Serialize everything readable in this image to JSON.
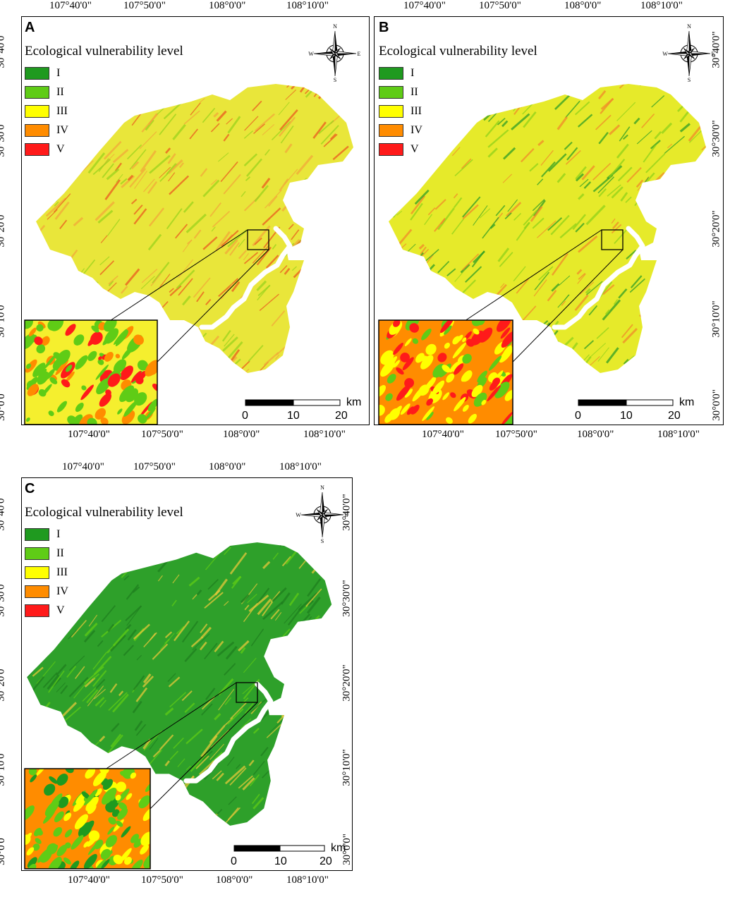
{
  "legend": {
    "title": "Ecological vulnerability level",
    "classes": [
      {
        "label": "I",
        "color": "#1f9a1f"
      },
      {
        "label": "II",
        "color": "#5fcc16"
      },
      {
        "label": "III",
        "color": "#ffff00"
      },
      {
        "label": "IV",
        "color": "#ff8c00"
      },
      {
        "label": "V",
        "color": "#ff1a1a"
      }
    ]
  },
  "lon_ticks": [
    "107°40'0\"",
    "107°50'0\"",
    "108°0'0\"",
    "108°10'0\""
  ],
  "lat_ticks": [
    "30°40'0\"",
    "30°30'0\"",
    "30°20'0\"",
    "30°10'0\"",
    "30°0'0\""
  ],
  "compass": {
    "n": "N",
    "s": "S",
    "e": "E",
    "w": "W"
  },
  "scale": {
    "unit": "km",
    "labels": [
      "0",
      "10",
      "20"
    ]
  },
  "panels": [
    {
      "label": "A",
      "palette": {
        "base": "#e9e63a",
        "streak1": "#f2a83a",
        "streak2": "#9ad31c",
        "streak3": "#ea5a1f"
      },
      "inset": {
        "base": "#f5ef2e",
        "b1": "#5fcc16",
        "b2": "#ff8c00",
        "b3": "#ff1a1a"
      }
    },
    {
      "label": "B",
      "palette": {
        "base": "#e6ea2a",
        "streak1": "#8fd21a",
        "streak2": "#2f9e26",
        "streak3": "#f08a2a"
      },
      "inset": {
        "base": "#ff8c00",
        "b1": "#ffff00",
        "b2": "#5fcc16",
        "b3": "#ff1a1a"
      }
    },
    {
      "label": "C",
      "palette": {
        "base": "#2ea02a",
        "streak1": "#5fcc16",
        "streak2": "#1f7f1f",
        "streak3": "#e6c83a"
      },
      "inset": {
        "base": "#ff8c00",
        "b1": "#5fcc16",
        "b2": "#1f9a1f",
        "b3": "#ffff00"
      }
    }
  ]
}
